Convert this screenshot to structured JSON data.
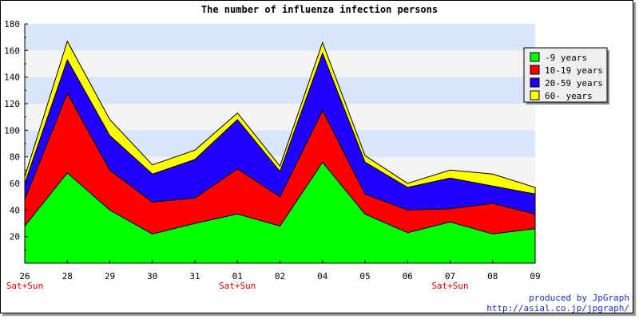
{
  "chart_data": {
    "type": "area",
    "stacked": true,
    "title": "The number of influenza infection persons",
    "categories": [
      "26",
      "28",
      "29",
      "30",
      "31",
      "01",
      "02",
      "04",
      "05",
      "06",
      "07",
      "08",
      "09"
    ],
    "weekend_labels": [
      "Sat+Sun",
      "",
      "",
      "",
      "",
      "Sat+Sun",
      "",
      "",
      "",
      "",
      "Sat+Sun",
      "",
      ""
    ],
    "ylim": [
      0,
      180
    ],
    "yticks": [
      20,
      40,
      60,
      80,
      100,
      120,
      140,
      160,
      180
    ],
    "grid": "horizontal bands",
    "legend_position": "top-right",
    "series": [
      {
        "name": "-9 years",
        "color": "#00ff00",
        "values": [
          28,
          68,
          40,
          22,
          30,
          37,
          28,
          76,
          37,
          23,
          31,
          22,
          26
        ]
      },
      {
        "name": "10-19 years",
        "color": "#ff0000",
        "values": [
          20,
          60,
          30,
          24,
          19,
          34,
          22,
          39,
          15,
          17,
          10,
          23,
          11
        ]
      },
      {
        "name": "20-59 years",
        "color": "#2200ff",
        "values": [
          12,
          25,
          26,
          21,
          29,
          37,
          19,
          43,
          24,
          17,
          23,
          13,
          15
        ]
      },
      {
        "name": "60- years",
        "color": "#ffff00",
        "values": [
          5,
          14,
          12,
          7,
          7,
          5,
          4,
          8,
          5,
          3,
          6,
          9,
          5
        ]
      }
    ]
  },
  "credits": {
    "line1": "produced by JpGraph",
    "line2": "http://asial.co.jp/jpgraph/"
  }
}
